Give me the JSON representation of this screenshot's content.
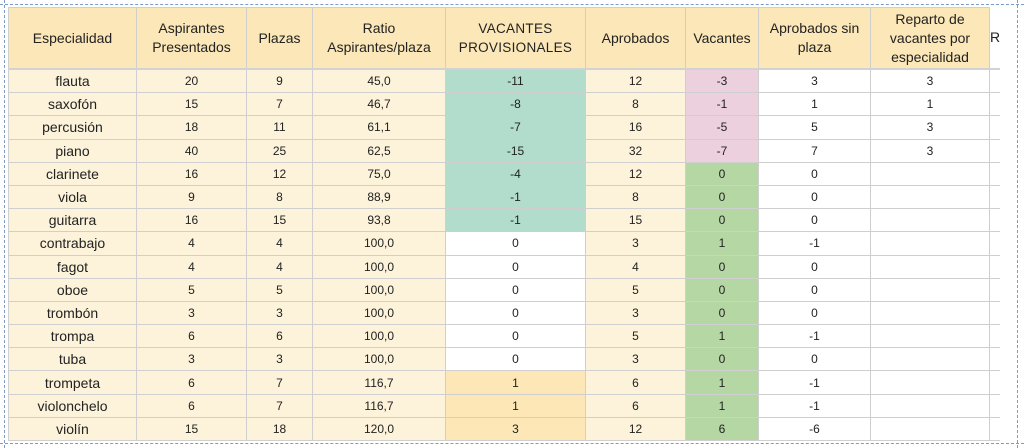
{
  "headers": {
    "especialidad": "Especialidad",
    "aspirantes": "Aspirantes Presentados",
    "plazas": "Plazas",
    "ratio": "Ratio Aspirantes/plaza",
    "vacantes_provisionales": "VACANTES PROVISIONALES",
    "aprobados": "Aprobados",
    "vacantes": "Vacantes",
    "aprobados_sin_plaza": "Aprobados sin plaza",
    "reparto": "Reparto de vacantes por especialidad",
    "extra": "R"
  },
  "rows": [
    {
      "especialidad": "flauta",
      "aspirantes": "20",
      "plazas": "9",
      "ratio": "45,0",
      "vacantes_provisionales": "-11",
      "aprobados": "12",
      "vacantes": "-3",
      "aprobados_sin_plaza": "3",
      "reparto": "3"
    },
    {
      "especialidad": "saxofón",
      "aspirantes": "15",
      "plazas": "7",
      "ratio": "46,7",
      "vacantes_provisionales": "-8",
      "aprobados": "8",
      "vacantes": "-1",
      "aprobados_sin_plaza": "1",
      "reparto": "1"
    },
    {
      "especialidad": "percusión",
      "aspirantes": "18",
      "plazas": "11",
      "ratio": "61,1",
      "vacantes_provisionales": "-7",
      "aprobados": "16",
      "vacantes": "-5",
      "aprobados_sin_plaza": "5",
      "reparto": "3"
    },
    {
      "especialidad": "piano",
      "aspirantes": "40",
      "plazas": "25",
      "ratio": "62,5",
      "vacantes_provisionales": "-15",
      "aprobados": "32",
      "vacantes": "-7",
      "aprobados_sin_plaza": "7",
      "reparto": "3"
    },
    {
      "especialidad": "clarinete",
      "aspirantes": "16",
      "plazas": "12",
      "ratio": "75,0",
      "vacantes_provisionales": "-4",
      "aprobados": "12",
      "vacantes": "0",
      "aprobados_sin_plaza": "0",
      "reparto": ""
    },
    {
      "especialidad": "viola",
      "aspirantes": "9",
      "plazas": "8",
      "ratio": "88,9",
      "vacantes_provisionales": "-1",
      "aprobados": "8",
      "vacantes": "0",
      "aprobados_sin_plaza": "0",
      "reparto": ""
    },
    {
      "especialidad": "guitarra",
      "aspirantes": "16",
      "plazas": "15",
      "ratio": "93,8",
      "vacantes_provisionales": "-1",
      "aprobados": "15",
      "vacantes": "0",
      "aprobados_sin_plaza": "0",
      "reparto": ""
    },
    {
      "especialidad": "contrabajo",
      "aspirantes": "4",
      "plazas": "4",
      "ratio": "100,0",
      "vacantes_provisionales": "0",
      "aprobados": "3",
      "vacantes": "1",
      "aprobados_sin_plaza": "-1",
      "reparto": ""
    },
    {
      "especialidad": "fagot",
      "aspirantes": "4",
      "plazas": "4",
      "ratio": "100,0",
      "vacantes_provisionales": "0",
      "aprobados": "4",
      "vacantes": "0",
      "aprobados_sin_plaza": "0",
      "reparto": ""
    },
    {
      "especialidad": "oboe",
      "aspirantes": "5",
      "plazas": "5",
      "ratio": "100,0",
      "vacantes_provisionales": "0",
      "aprobados": "5",
      "vacantes": "0",
      "aprobados_sin_plaza": "0",
      "reparto": ""
    },
    {
      "especialidad": "trombón",
      "aspirantes": "3",
      "plazas": "3",
      "ratio": "100,0",
      "vacantes_provisionales": "0",
      "aprobados": "3",
      "vacantes": "0",
      "aprobados_sin_plaza": "0",
      "reparto": ""
    },
    {
      "especialidad": "trompa",
      "aspirantes": "6",
      "plazas": "6",
      "ratio": "100,0",
      "vacantes_provisionales": "0",
      "aprobados": "5",
      "vacantes": "1",
      "aprobados_sin_plaza": "-1",
      "reparto": ""
    },
    {
      "especialidad": "tuba",
      "aspirantes": "3",
      "plazas": "3",
      "ratio": "100,0",
      "vacantes_provisionales": "0",
      "aprobados": "3",
      "vacantes": "0",
      "aprobados_sin_plaza": "0",
      "reparto": ""
    },
    {
      "especialidad": "trompeta",
      "aspirantes": "6",
      "plazas": "7",
      "ratio": "116,7",
      "vacantes_provisionales": "1",
      "aprobados": "6",
      "vacantes": "1",
      "aprobados_sin_plaza": "-1",
      "reparto": ""
    },
    {
      "especialidad": "violonchelo",
      "aspirantes": "6",
      "plazas": "7",
      "ratio": "116,7",
      "vacantes_provisionales": "1",
      "aprobados": "6",
      "vacantes": "1",
      "aprobados_sin_plaza": "-1",
      "reparto": ""
    },
    {
      "especialidad": "violín",
      "aspirantes": "15",
      "plazas": "18",
      "ratio": "120,0",
      "vacantes_provisionales": "3",
      "aprobados": "12",
      "vacantes": "6",
      "aprobados_sin_plaza": "-6",
      "reparto": ""
    }
  ],
  "colors": {
    "header_fill": "#fbe7b8",
    "name_fill": "#fdf3da",
    "provisional_negative": "#b2dccb",
    "provisional_positive": "#fde7b7",
    "vacantes_negative": "#ecd0dd",
    "vacantes_non_negative": "#b5d7a3",
    "selection_border": "#7a9cc6"
  }
}
